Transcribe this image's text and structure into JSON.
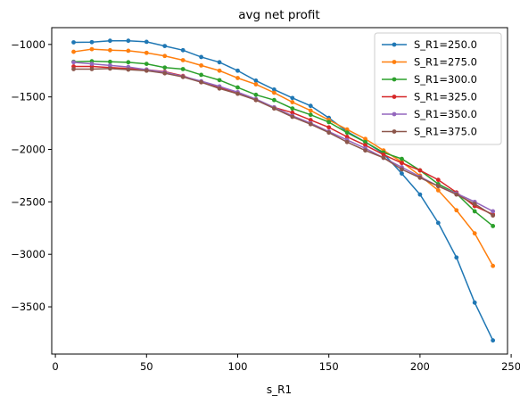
{
  "chart_data": {
    "type": "line",
    "title": "avg net profit",
    "xlabel": "s_R1",
    "ylabel": "",
    "xlim": [
      -2,
      248
    ],
    "ylim": [
      -3950,
      -840
    ],
    "xticks": [
      0,
      50,
      100,
      150,
      200,
      250
    ],
    "yticks": [
      -3500,
      -3000,
      -2500,
      -2000,
      -1500,
      -1000
    ],
    "grid": false,
    "legend_position": "top-right",
    "x": [
      10,
      20,
      30,
      40,
      50,
      60,
      70,
      80,
      90,
      100,
      110,
      120,
      130,
      140,
      150,
      160,
      170,
      180,
      190,
      200,
      210,
      220,
      230,
      240
    ],
    "series": [
      {
        "name": "S_R1=250.0",
        "color": "#1f77b4",
        "values": [
          -980,
          -978,
          -965,
          -965,
          -975,
          -1015,
          -1055,
          -1120,
          -1170,
          -1250,
          -1345,
          -1430,
          -1510,
          -1585,
          -1700,
          -1830,
          -1930,
          -2040,
          -2230,
          -2430,
          -2700,
          -3030,
          -3460,
          -3820
        ]
      },
      {
        "name": "S_R1=275.0",
        "color": "#ff7f0e",
        "values": [
          -1070,
          -1045,
          -1055,
          -1060,
          -1080,
          -1110,
          -1150,
          -1200,
          -1250,
          -1320,
          -1380,
          -1460,
          -1550,
          -1630,
          -1720,
          -1810,
          -1900,
          -2010,
          -2120,
          -2250,
          -2390,
          -2580,
          -2800,
          -3110
        ]
      },
      {
        "name": "S_R1=300.0",
        "color": "#2ca02c",
        "values": [
          -1165,
          -1160,
          -1165,
          -1170,
          -1185,
          -1220,
          -1235,
          -1290,
          -1340,
          -1410,
          -1480,
          -1530,
          -1610,
          -1670,
          -1740,
          -1840,
          -1930,
          -2030,
          -2090,
          -2200,
          -2330,
          -2420,
          -2590,
          -2730
        ]
      },
      {
        "name": "S_R1=325.0",
        "color": "#d62728",
        "values": [
          -1210,
          -1210,
          -1220,
          -1230,
          -1240,
          -1260,
          -1300,
          -1360,
          -1410,
          -1460,
          -1530,
          -1600,
          -1650,
          -1720,
          -1790,
          -1880,
          -1960,
          -2050,
          -2130,
          -2200,
          -2290,
          -2410,
          -2540,
          -2620
        ]
      },
      {
        "name": "S_R1=350.0",
        "color": "#9467bd",
        "values": [
          -1170,
          -1185,
          -1200,
          -1215,
          -1240,
          -1265,
          -1305,
          -1350,
          -1400,
          -1455,
          -1520,
          -1600,
          -1680,
          -1750,
          -1830,
          -1910,
          -1990,
          -2080,
          -2170,
          -2260,
          -2350,
          -2420,
          -2500,
          -2590
        ]
      },
      {
        "name": "S_R1=375.0",
        "color": "#8c564b",
        "values": [
          -1235,
          -1235,
          -1230,
          -1240,
          -1250,
          -1275,
          -1310,
          -1360,
          -1420,
          -1470,
          -1530,
          -1610,
          -1690,
          -1760,
          -1840,
          -1930,
          -2010,
          -2080,
          -2190,
          -2270,
          -2350,
          -2430,
          -2520,
          -2630
        ]
      }
    ]
  }
}
